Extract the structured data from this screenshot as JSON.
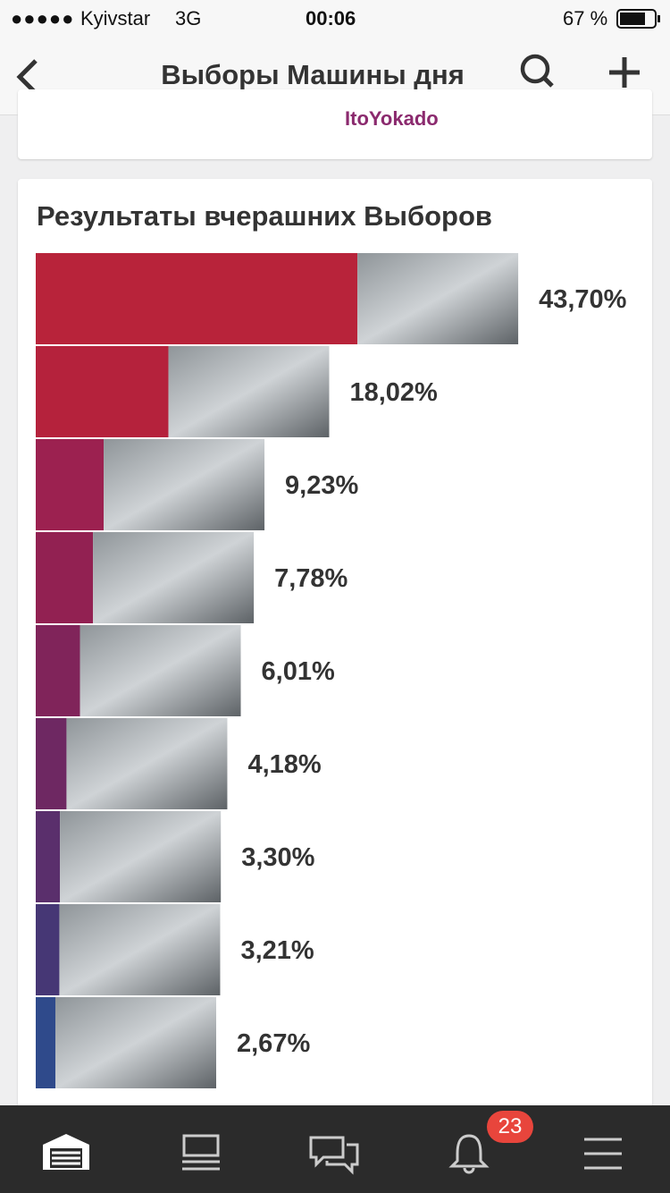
{
  "status_bar": {
    "carrier": "Kyivstar",
    "network": "3G",
    "time": "00:06",
    "battery": "67 %"
  },
  "nav": {
    "title": "Выборы Машины дня"
  },
  "previous_card": {
    "text": "ItoYokado"
  },
  "chart_data": {
    "type": "bar",
    "orientation": "horizontal",
    "title": "Результаты вчерашних Выборов",
    "values": [
      43.7,
      18.02,
      9.23,
      7.78,
      6.01,
      4.18,
      3.3,
      3.21,
      2.67
    ],
    "value_labels": [
      "43,70%",
      "18,02%",
      "9,23%",
      "7,78%",
      "6,01%",
      "4,18%",
      "3,30%",
      "3,21%",
      "2,67%"
    ],
    "colors": [
      "#b8233a",
      "#b5223c",
      "#9c2150",
      "#922152",
      "#80245a",
      "#6e2862",
      "#5a2f6c",
      "#463775",
      "#2f4a8b"
    ]
  },
  "tab_bar": {
    "badge": "23"
  }
}
